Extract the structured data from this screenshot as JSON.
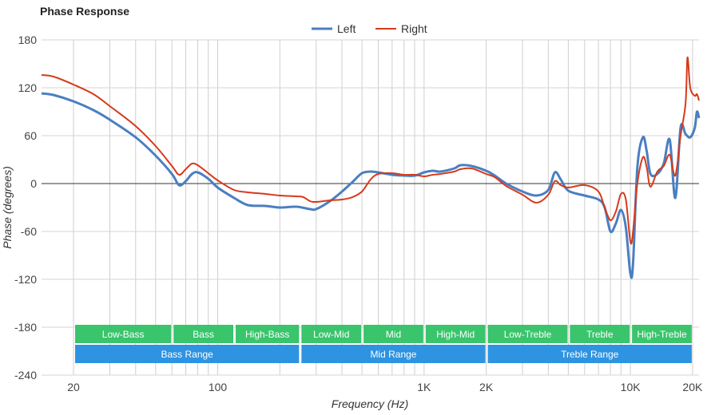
{
  "chart_data": {
    "type": "line",
    "title": "Phase Response",
    "xlabel": "Frequency (Hz)",
    "ylabel": "Phase (degrees)",
    "x_scale": "log",
    "xlim": [
      14,
      21500
    ],
    "ylim": [
      -240,
      180
    ],
    "x_ticks": [
      {
        "value": 20,
        "label": "20"
      },
      {
        "value": 100,
        "label": "100"
      },
      {
        "value": 1000,
        "label": "1K"
      },
      {
        "value": 2000,
        "label": "2K"
      },
      {
        "value": 10000,
        "label": "10K"
      },
      {
        "value": 20000,
        "label": "20K"
      }
    ],
    "y_ticks": [
      180,
      120,
      60,
      0,
      -60,
      -120,
      -180,
      -240
    ],
    "grid": true,
    "legend": "top-center",
    "series": [
      {
        "name": "Left",
        "color": "#4a7fc1",
        "points": [
          [
            14,
            113
          ],
          [
            16,
            111
          ],
          [
            20,
            103
          ],
          [
            25,
            92
          ],
          [
            30,
            80
          ],
          [
            40,
            58
          ],
          [
            50,
            35
          ],
          [
            60,
            12
          ],
          [
            65,
            -2
          ],
          [
            70,
            3
          ],
          [
            75,
            12
          ],
          [
            80,
            14
          ],
          [
            90,
            6
          ],
          [
            100,
            -5
          ],
          [
            120,
            -18
          ],
          [
            140,
            -27
          ],
          [
            170,
            -28
          ],
          [
            200,
            -30
          ],
          [
            240,
            -29
          ],
          [
            280,
            -32
          ],
          [
            300,
            -32
          ],
          [
            350,
            -22
          ],
          [
            400,
            -10
          ],
          [
            450,
            2
          ],
          [
            500,
            13
          ],
          [
            550,
            15
          ],
          [
            600,
            14
          ],
          [
            700,
            11
          ],
          [
            800,
            10
          ],
          [
            900,
            10
          ],
          [
            1000,
            14
          ],
          [
            1100,
            16
          ],
          [
            1200,
            15
          ],
          [
            1400,
            19
          ],
          [
            1500,
            23
          ],
          [
            1700,
            22
          ],
          [
            2000,
            16
          ],
          [
            2200,
            10
          ],
          [
            2500,
            0
          ],
          [
            3000,
            -10
          ],
          [
            3500,
            -15
          ],
          [
            4000,
            -8
          ],
          [
            4300,
            14
          ],
          [
            4600,
            5
          ],
          [
            5000,
            -9
          ],
          [
            6000,
            -15
          ],
          [
            7000,
            -20
          ],
          [
            7500,
            -30
          ],
          [
            8000,
            -60
          ],
          [
            8500,
            -50
          ],
          [
            9000,
            -33
          ],
          [
            9500,
            -55
          ],
          [
            10000,
            -113
          ],
          [
            10300,
            -100
          ],
          [
            10800,
            20
          ],
          [
            11500,
            58
          ],
          [
            12000,
            40
          ],
          [
            12500,
            12
          ],
          [
            13500,
            12
          ],
          [
            14500,
            25
          ],
          [
            15500,
            55
          ],
          [
            16500,
            -18
          ],
          [
            17500,
            70
          ],
          [
            18500,
            62
          ],
          [
            19500,
            58
          ],
          [
            20500,
            70
          ],
          [
            21000,
            90
          ],
          [
            21500,
            82
          ]
        ]
      },
      {
        "name": "Right",
        "color": "#d63a1a",
        "points": [
          [
            14,
            136
          ],
          [
            16,
            134
          ],
          [
            20,
            124
          ],
          [
            25,
            112
          ],
          [
            30,
            97
          ],
          [
            40,
            72
          ],
          [
            50,
            47
          ],
          [
            60,
            22
          ],
          [
            65,
            11
          ],
          [
            70,
            18
          ],
          [
            75,
            25
          ],
          [
            80,
            23
          ],
          [
            90,
            13
          ],
          [
            100,
            4
          ],
          [
            120,
            -8
          ],
          [
            140,
            -11
          ],
          [
            170,
            -13
          ],
          [
            200,
            -15
          ],
          [
            240,
            -16
          ],
          [
            260,
            -17
          ],
          [
            280,
            -22
          ],
          [
            300,
            -23
          ],
          [
            350,
            -21
          ],
          [
            400,
            -20
          ],
          [
            450,
            -17
          ],
          [
            500,
            -10
          ],
          [
            550,
            5
          ],
          [
            600,
            12
          ],
          [
            700,
            13
          ],
          [
            800,
            11
          ],
          [
            900,
            11
          ],
          [
            1000,
            9
          ],
          [
            1100,
            11
          ],
          [
            1200,
            12
          ],
          [
            1400,
            15
          ],
          [
            1500,
            18
          ],
          [
            1700,
            19
          ],
          [
            2000,
            12
          ],
          [
            2200,
            8
          ],
          [
            2500,
            -3
          ],
          [
            3000,
            -14
          ],
          [
            3500,
            -24
          ],
          [
            4000,
            -14
          ],
          [
            4300,
            3
          ],
          [
            4600,
            -2
          ],
          [
            5000,
            -5
          ],
          [
            6000,
            -2
          ],
          [
            7000,
            -10
          ],
          [
            7500,
            -30
          ],
          [
            8000,
            -46
          ],
          [
            8500,
            -35
          ],
          [
            9000,
            -13
          ],
          [
            9500,
            -20
          ],
          [
            10000,
            -73
          ],
          [
            10300,
            -60
          ],
          [
            10800,
            0
          ],
          [
            11500,
            33
          ],
          [
            12000,
            20
          ],
          [
            12500,
            -4
          ],
          [
            13500,
            15
          ],
          [
            14500,
            22
          ],
          [
            15500,
            36
          ],
          [
            16500,
            10
          ],
          [
            17500,
            60
          ],
          [
            18500,
            100
          ],
          [
            18900,
            158
          ],
          [
            19500,
            120
          ],
          [
            20500,
            110
          ],
          [
            21000,
            112
          ],
          [
            21500,
            104
          ]
        ]
      }
    ],
    "range_bands": {
      "rows": [
        {
          "color": "#3ac46c",
          "items": [
            {
              "label": "Low-Bass",
              "from": 20,
              "to": 60
            },
            {
              "label": "Bass",
              "from": 60,
              "to": 120
            },
            {
              "label": "High-Bass",
              "from": 120,
              "to": 250
            },
            {
              "label": "Low-Mid",
              "from": 250,
              "to": 500
            },
            {
              "label": "Mid",
              "from": 500,
              "to": 1000
            },
            {
              "label": "High-Mid",
              "from": 1000,
              "to": 2000
            },
            {
              "label": "Low-Treble",
              "from": 2000,
              "to": 5000
            },
            {
              "label": "Treble",
              "from": 5000,
              "to": 10000
            },
            {
              "label": "High-Treble",
              "from": 10000,
              "to": 20000
            }
          ]
        },
        {
          "color": "#2e93e1",
          "items": [
            {
              "label": "Bass Range",
              "from": 20,
              "to": 250
            },
            {
              "label": "Mid Range",
              "from": 250,
              "to": 2000
            },
            {
              "label": "Treble Range",
              "from": 2000,
              "to": 20000
            }
          ]
        }
      ]
    }
  }
}
